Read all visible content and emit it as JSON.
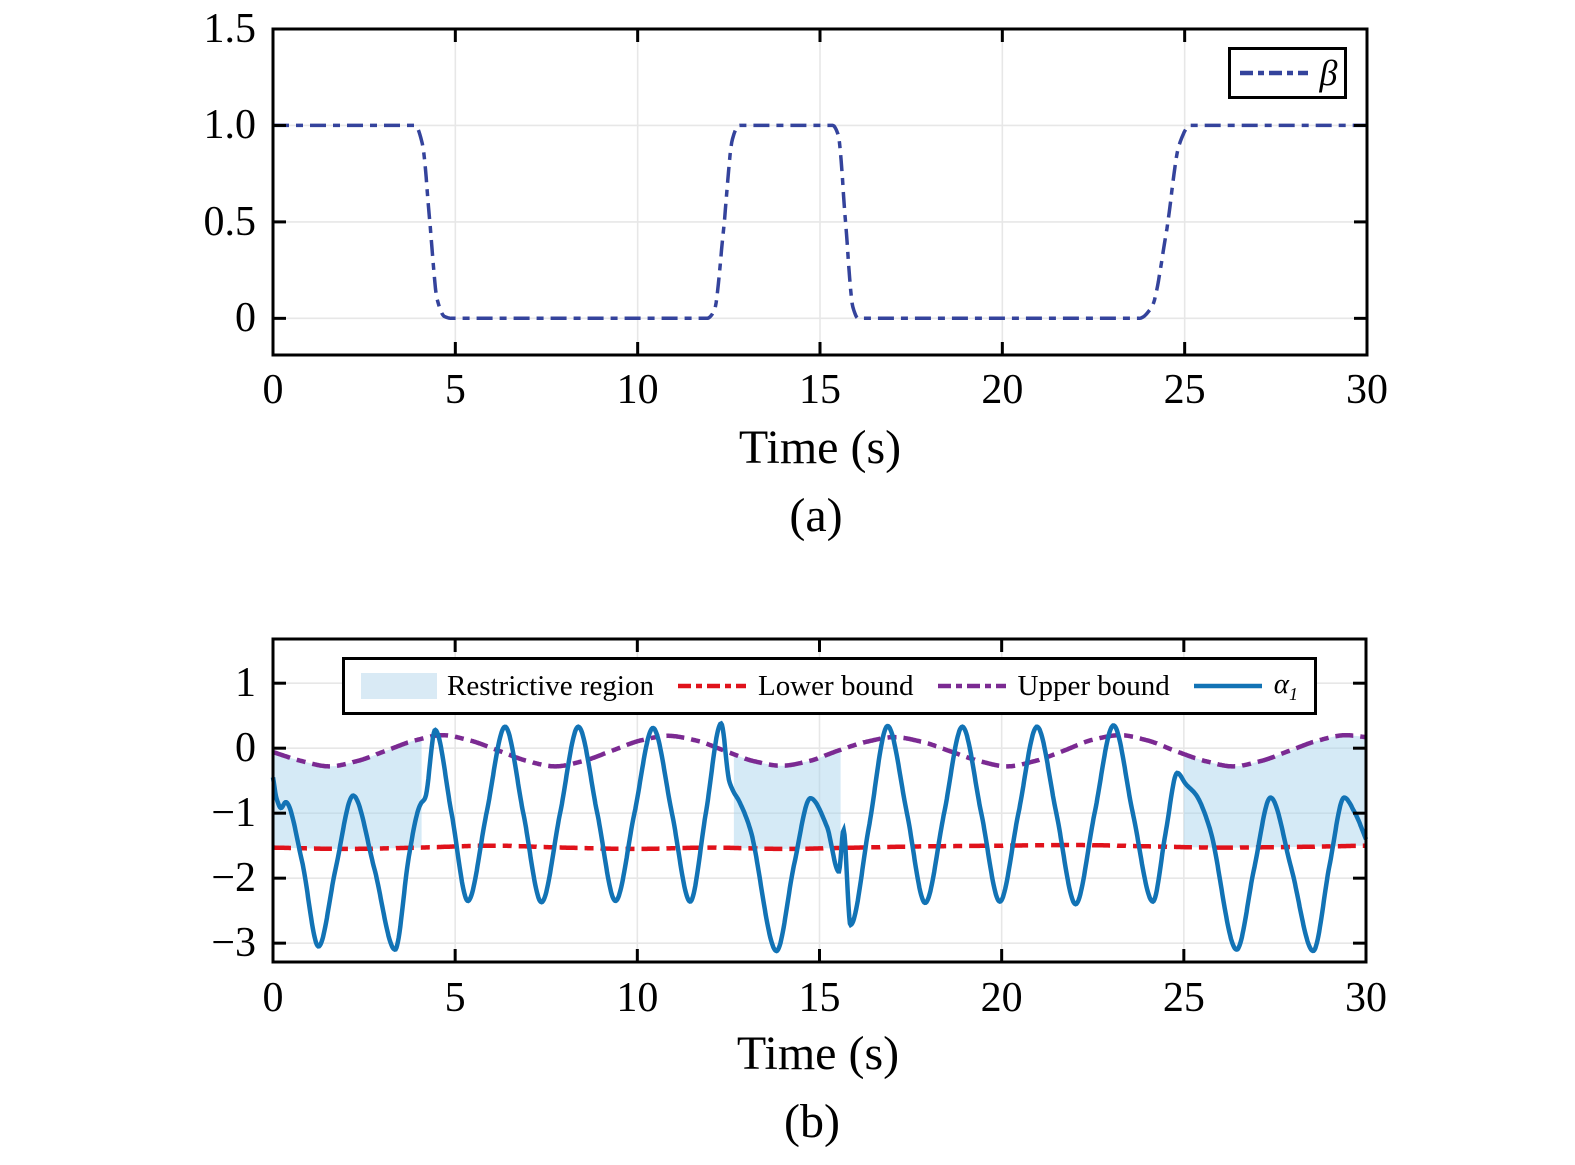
{
  "figure": {
    "background": "#ffffff",
    "axis_color": "#000000",
    "grid_color": "#e7e7e7",
    "region_fill": "rgba(168,212,236,0.48)",
    "swatch_color": "#d9eaf5"
  },
  "chart_data": [
    {
      "type": "line",
      "panel": "a",
      "title": "",
      "xlabel": "Time (s)",
      "caption": "(a)",
      "xlim": [
        0,
        30
      ],
      "ylim": [
        -0.19,
        1.5
      ],
      "x_ticks": [
        {
          "v": 0,
          "l": "0"
        },
        {
          "v": 5,
          "l": "5"
        },
        {
          "v": 10,
          "l": "10"
        },
        {
          "v": 15,
          "l": "15"
        },
        {
          "v": 20,
          "l": "20"
        },
        {
          "v": 25,
          "l": "25"
        },
        {
          "v": 30,
          "l": "30"
        }
      ],
      "y_ticks": [
        {
          "v": 0,
          "l": "0"
        },
        {
          "v": 0.5,
          "l": "0.5"
        },
        {
          "v": 1,
          "l": "1.0"
        },
        {
          "v": 1.5,
          "l": "1.5"
        }
      ],
      "grid_x": [
        5,
        10,
        15,
        20,
        25
      ],
      "grid_y": [
        0,
        0.5,
        1.0
      ],
      "legend": {
        "position": "top-right",
        "entries": [
          {
            "label": "β",
            "italic": true,
            "color": "#34439c",
            "style": "dashdot"
          }
        ]
      },
      "series": [
        {
          "name": "β",
          "color": "#34439c",
          "style": "dashdot",
          "width": 3.5,
          "points": [
            [
              0,
              1
            ],
            [
              3.9,
              1
            ],
            [
              4.1,
              0.9
            ],
            [
              4.3,
              0.5
            ],
            [
              4.5,
              0.1
            ],
            [
              4.7,
              0.01
            ],
            [
              4.9,
              0
            ],
            [
              11.9,
              0
            ],
            [
              12.1,
              0.04
            ],
            [
              12.35,
              0.45
            ],
            [
              12.6,
              0.93
            ],
            [
              12.78,
              1
            ],
            [
              15.35,
              1
            ],
            [
              15.5,
              0.95
            ],
            [
              15.7,
              0.5
            ],
            [
              15.9,
              0.06
            ],
            [
              16.05,
              0
            ],
            [
              23.75,
              0
            ],
            [
              24.1,
              0.06
            ],
            [
              24.5,
              0.45
            ],
            [
              24.85,
              0.9
            ],
            [
              25.15,
              1
            ],
            [
              30,
              1
            ]
          ]
        }
      ]
    },
    {
      "type": "line",
      "panel": "b",
      "title": "",
      "xlabel": "Time (s)",
      "caption": "(b)",
      "xlim": [
        0,
        30
      ],
      "ylim": [
        -3.29,
        1.68
      ],
      "x_ticks": [
        {
          "v": 0,
          "l": "0"
        },
        {
          "v": 5,
          "l": "5"
        },
        {
          "v": 10,
          "l": "10"
        },
        {
          "v": 15,
          "l": "15"
        },
        {
          "v": 20,
          "l": "20"
        },
        {
          "v": 25,
          "l": "25"
        },
        {
          "v": 30,
          "l": "30"
        }
      ],
      "y_ticks": [
        {
          "v": 1,
          "l": "1"
        },
        {
          "v": 0,
          "l": "0"
        },
        {
          "v": -1,
          "l": "−1"
        },
        {
          "v": -2,
          "l": "−2"
        },
        {
          "v": -3,
          "l": "−3"
        }
      ],
      "grid_x": [
        5,
        10,
        15,
        20,
        25
      ],
      "grid_y": [
        1,
        0,
        -1,
        -2,
        -3
      ],
      "restrictive_regions": [
        [
          0,
          4.08
        ],
        [
          12.65,
          15.58
        ],
        [
          25.0,
          30
        ]
      ],
      "legend": {
        "position": "top-inside",
        "entries": [
          {
            "swatch": true,
            "label": "Restrictive region",
            "color": "#d9eaf5"
          },
          {
            "label": "Lower bound",
            "color": "#e0121b",
            "style": "dashdot"
          },
          {
            "label": "Upper bound",
            "color": "#7b2a92",
            "style": "dashdot"
          },
          {
            "label": "α",
            "sub": "1",
            "italic": true,
            "color": "#1273b5",
            "style": "solid"
          }
        ]
      },
      "series": [
        {
          "name": "Lower bound",
          "color": "#e0121b",
          "style": "dashdot",
          "width": 4.5,
          "points": [
            [
              0,
              -1.53
            ],
            [
              2,
              -1.55
            ],
            [
              4,
              -1.53
            ],
            [
              6,
              -1.5
            ],
            [
              8,
              -1.53
            ],
            [
              10,
              -1.55
            ],
            [
              12,
              -1.53
            ],
            [
              14,
              -1.55
            ],
            [
              16,
              -1.53
            ],
            [
              18,
              -1.51
            ],
            [
              20,
              -1.5
            ],
            [
              22,
              -1.49
            ],
            [
              24,
              -1.51
            ],
            [
              26,
              -1.53
            ],
            [
              28,
              -1.52
            ],
            [
              30,
              -1.5
            ]
          ]
        },
        {
          "name": "Upper bound",
          "color": "#7b2a92",
          "style": "dashdot",
          "width": 4.5,
          "points": [
            [
              0,
              -0.06
            ],
            [
              0.8,
              -0.2
            ],
            [
              1.55,
              -0.28
            ],
            [
              2.3,
              -0.2
            ],
            [
              3.1,
              -0.04
            ],
            [
              3.9,
              0.12
            ],
            [
              4.65,
              0.2
            ],
            [
              5.4,
              0.12
            ],
            [
              6.2,
              -0.04
            ],
            [
              7,
              -0.2
            ],
            [
              7.75,
              -0.28
            ],
            [
              8.5,
              -0.2
            ],
            [
              9.3,
              -0.04
            ],
            [
              10.1,
              0.12
            ],
            [
              10.85,
              0.19
            ],
            [
              11.6,
              0.12
            ],
            [
              12.4,
              -0.04
            ],
            [
              13.2,
              -0.2
            ],
            [
              13.95,
              -0.27
            ],
            [
              14.7,
              -0.2
            ],
            [
              15.5,
              -0.04
            ],
            [
              16.3,
              0.1
            ],
            [
              17.05,
              0.17
            ],
            [
              17.8,
              0.1
            ],
            [
              18.6,
              -0.05
            ],
            [
              19.4,
              -0.2
            ],
            [
              20.15,
              -0.28
            ],
            [
              20.9,
              -0.2
            ],
            [
              21.7,
              -0.04
            ],
            [
              22.5,
              0.13
            ],
            [
              23.25,
              0.2
            ],
            [
              24,
              0.12
            ],
            [
              24.8,
              -0.05
            ],
            [
              25.6,
              -0.2
            ],
            [
              26.35,
              -0.28
            ],
            [
              27.1,
              -0.2
            ],
            [
              27.9,
              -0.04
            ],
            [
              28.7,
              0.12
            ],
            [
              29.45,
              0.2
            ],
            [
              30,
              0.17
            ]
          ]
        },
        {
          "name": "α1",
          "color": "#1273b5",
          "style": "solid",
          "width": 4.5,
          "points": [
            [
              0,
              -0.45
            ],
            [
              0.1,
              -0.78
            ],
            [
              0.22,
              -0.92
            ],
            [
              0.35,
              -0.83
            ],
            [
              0.8,
              -1.75
            ],
            [
              1.25,
              -3.05
            ],
            [
              1.72,
              -1.85
            ],
            [
              2.2,
              -0.73
            ],
            [
              2.78,
              -1.85
            ],
            [
              3.35,
              -3.1
            ],
            [
              3.72,
              -1.7
            ],
            [
              3.95,
              -1.02
            ],
            [
              4.05,
              -0.86
            ],
            [
              4.18,
              -0.76
            ],
            [
              4.45,
              0.28
            ],
            [
              4.9,
              -1.0
            ],
            [
              5.35,
              -2.35
            ],
            [
              5.86,
              -1.0
            ],
            [
              6.37,
              0.33
            ],
            [
              6.87,
              -1.0
            ],
            [
              7.37,
              -2.37
            ],
            [
              7.88,
              -1.0
            ],
            [
              8.38,
              0.33
            ],
            [
              8.9,
              -1.0
            ],
            [
              9.4,
              -2.35
            ],
            [
              9.92,
              -1.0
            ],
            [
              10.43,
              0.31
            ],
            [
              10.95,
              -1.0
            ],
            [
              11.45,
              -2.36
            ],
            [
              11.88,
              -1.0
            ],
            [
              12.3,
              0.38
            ],
            [
              12.52,
              -0.5
            ],
            [
              12.65,
              -0.68
            ],
            [
              12.78,
              -0.8
            ],
            [
              13.1,
              -1.25
            ],
            [
              13.82,
              -3.12
            ],
            [
              14.3,
              -1.8
            ],
            [
              14.75,
              -0.77
            ],
            [
              15.2,
              -1.2
            ],
            [
              15.53,
              -1.9
            ],
            [
              15.66,
              -1.26
            ],
            [
              15.85,
              -2.72
            ],
            [
              16.36,
              -1.2
            ],
            [
              16.87,
              0.34
            ],
            [
              17.4,
              -1.0
            ],
            [
              17.9,
              -2.38
            ],
            [
              18.42,
              -1.0
            ],
            [
              18.92,
              0.33
            ],
            [
              19.44,
              -1.0
            ],
            [
              19.95,
              -2.36
            ],
            [
              20.46,
              -1.0
            ],
            [
              20.97,
              0.33
            ],
            [
              21.5,
              -1.0
            ],
            [
              22.03,
              -2.4
            ],
            [
              22.55,
              -1.0
            ],
            [
              23.07,
              0.35
            ],
            [
              23.6,
              -1.0
            ],
            [
              24.15,
              -2.36
            ],
            [
              24.5,
              -1.3
            ],
            [
              24.82,
              -0.38
            ],
            [
              25.05,
              -0.55
            ],
            [
              25.35,
              -0.73
            ],
            [
              25.72,
              -1.25
            ],
            [
              26.45,
              -3.1
            ],
            [
              26.93,
              -1.85
            ],
            [
              27.38,
              -0.76
            ],
            [
              27.95,
              -1.85
            ],
            [
              28.55,
              -3.12
            ],
            [
              29.0,
              -1.8
            ],
            [
              29.4,
              -0.76
            ],
            [
              29.7,
              -1.0
            ],
            [
              30,
              -1.4
            ]
          ]
        }
      ]
    }
  ]
}
